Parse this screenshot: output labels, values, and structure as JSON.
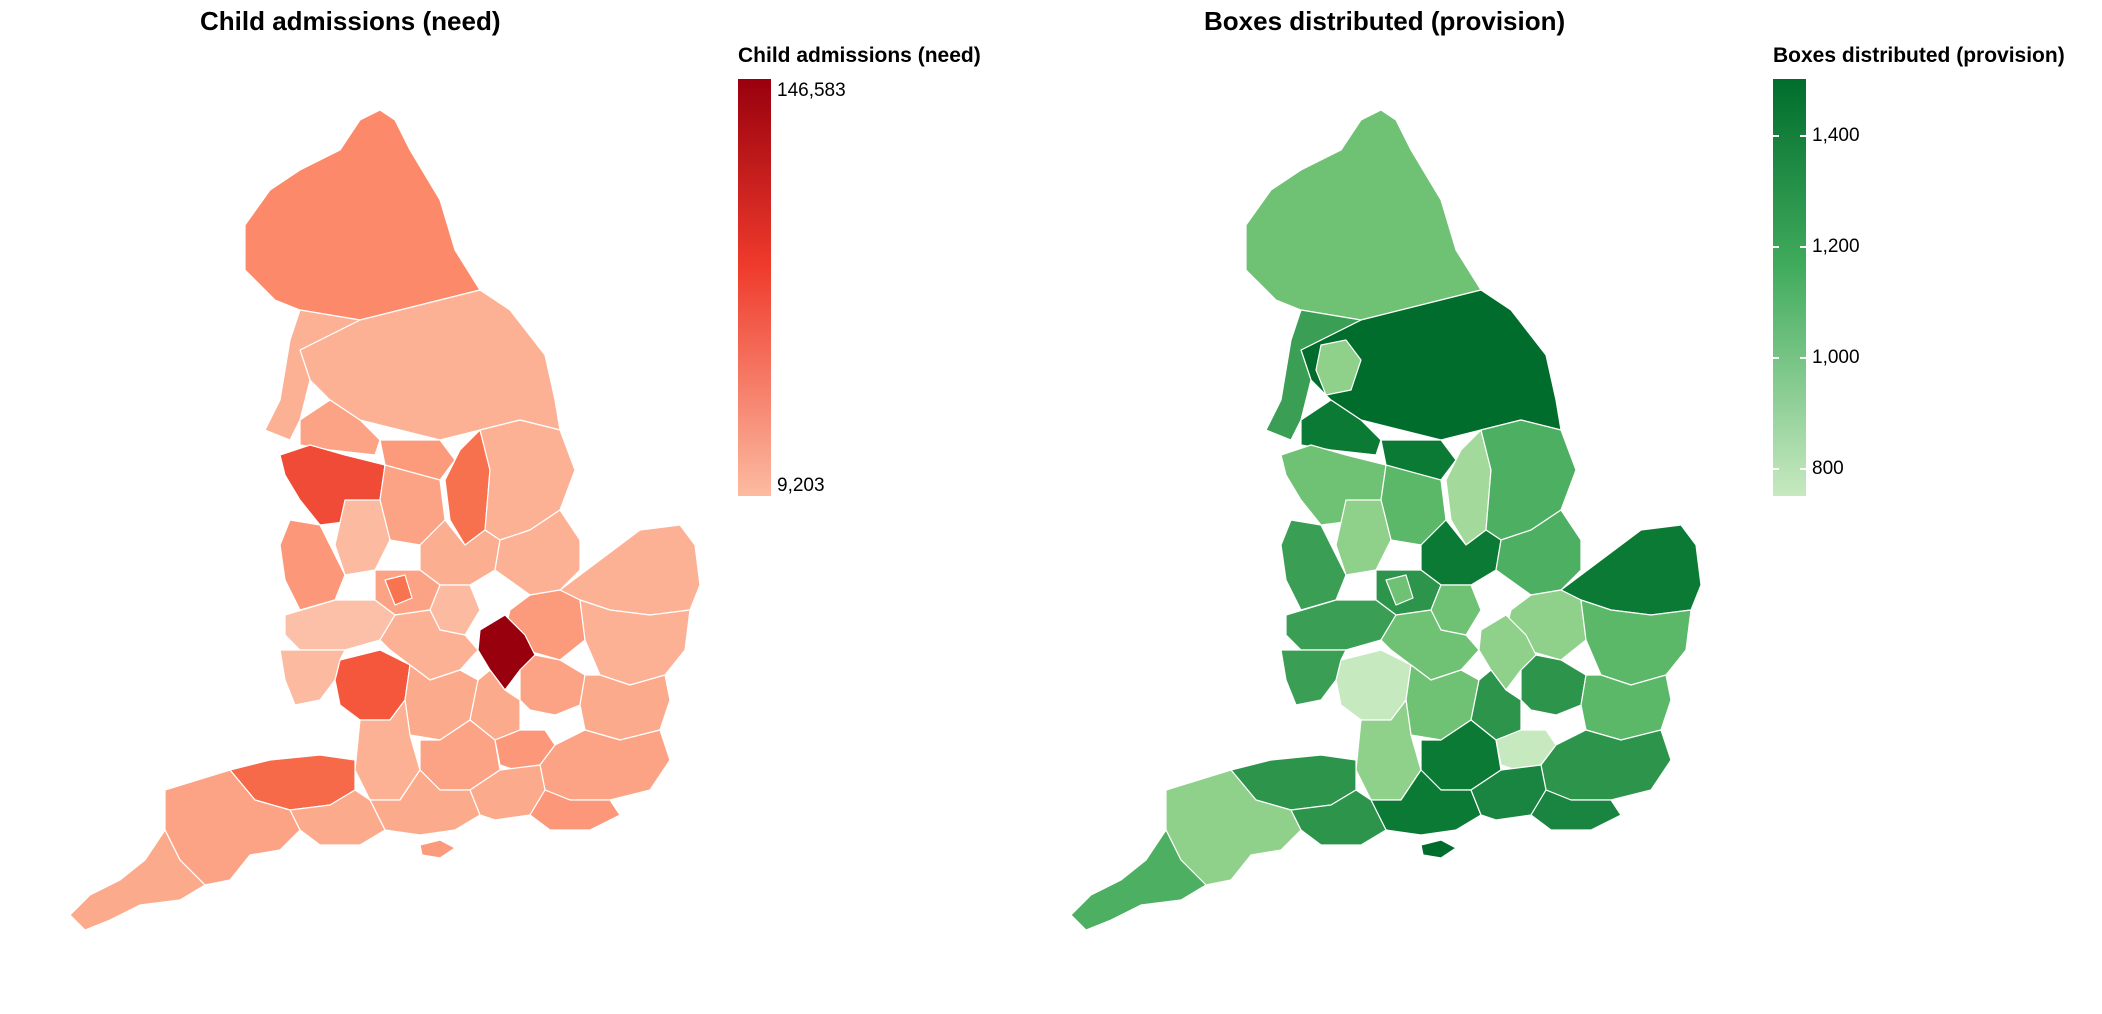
{
  "panels": [
    {
      "title": "Child admissions (need)",
      "legend": {
        "title": "Child admissions (need)",
        "max_label": "146,583",
        "min_label": "9,203",
        "color_low": "#fcbba1",
        "color_mid": "#ef3b2c",
        "color_high": "#99000d"
      }
    },
    {
      "title": "Boxes distributed (provision)",
      "legend": {
        "title": "Boxes distributed (provision)",
        "ticks": [
          "1,400",
          "1,200",
          "1,000",
          "800"
        ],
        "color_low": "#c7e9c0",
        "color_mid": "#41ab5d",
        "color_high": "#006d2c"
      }
    }
  ]
}
